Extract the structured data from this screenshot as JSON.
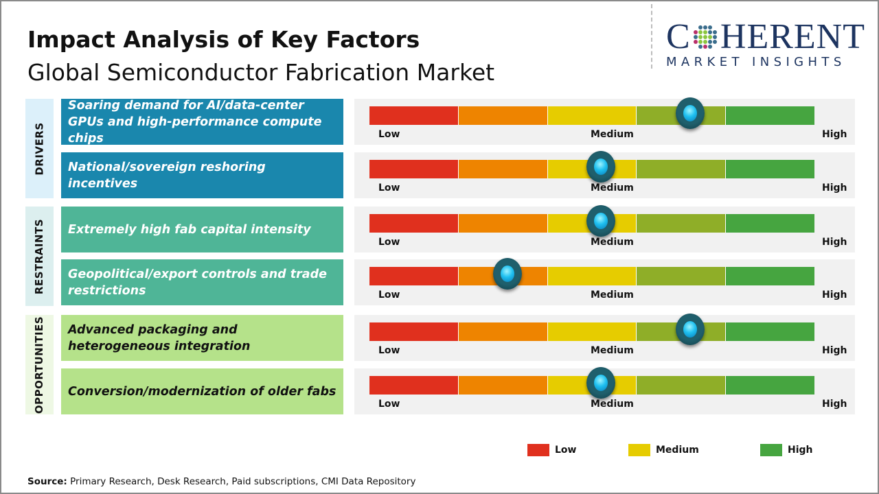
{
  "header": {
    "title": "Impact Analysis of Key Factors",
    "subtitle": "Global Semiconductor Fabrication Market"
  },
  "logo": {
    "text_top": "COHERENT",
    "text_bottom": "MARKET INSIGHTS",
    "primary_color": "#1d3460"
  },
  "scale": {
    "labels": [
      "Low",
      "Medium",
      "High"
    ],
    "segment_colors": [
      "#e0301e",
      "#ee8400",
      "#e6cc00",
      "#8fae28",
      "#46a540"
    ]
  },
  "categories": [
    {
      "label": "DRIVERS",
      "band_color": "#dcf0fa",
      "box_color": "#1a87ad",
      "text_color": "#ffffff",
      "factors": [
        {
          "text": "Soaring demand for AI/data-center GPUs and high-performance compute chips",
          "impact_position": 0.72
        },
        {
          "text": "National/sovereign reshoring incentives",
          "impact_position": 0.52
        }
      ]
    },
    {
      "label": "RESTRAINTS",
      "band_color": "#dcefef",
      "box_color": "#4fb597",
      "text_color": "#ffffff",
      "factors": [
        {
          "text": "Extremely high fab capital intensity",
          "impact_position": 0.52
        },
        {
          "text": "Geopolitical/export controls and trade restrictions",
          "impact_position": 0.31
        }
      ]
    },
    {
      "label": "OPPORTUNITIES",
      "band_color": "#eef8e4",
      "box_color": "#b5e28a",
      "text_color": "#111111",
      "factors": [
        {
          "text": "Advanced packaging and heterogeneous integration",
          "impact_position": 0.72
        },
        {
          "text": "Conversion/modernization of older fabs",
          "impact_position": 0.52
        }
      ]
    }
  ],
  "legend": [
    {
      "label": "Low",
      "color": "#e0301e"
    },
    {
      "label": "Medium",
      "color": "#e6cc00"
    },
    {
      "label": "High",
      "color": "#46a540"
    }
  ],
  "source": {
    "label": "Source:",
    "text": " Primary Research, Desk Research, Paid subscriptions, CMI Data Repository"
  }
}
